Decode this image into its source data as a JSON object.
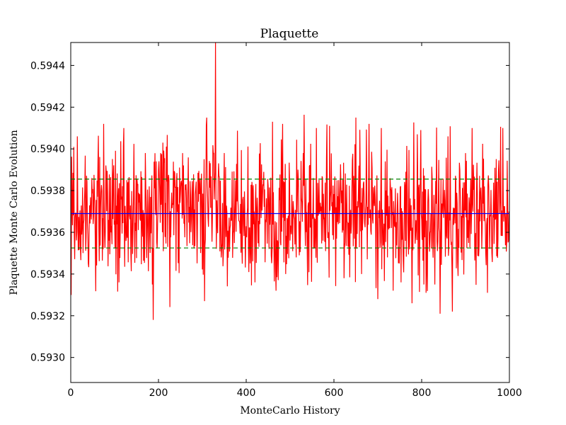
{
  "chart_data": {
    "type": "line",
    "title": "Plaquette",
    "xlabel": "MonteCarlo History",
    "ylabel": "Plaquette Monte Carlo Evolution",
    "xlim": [
      0,
      1000
    ],
    "ylim": [
      0.59288,
      0.59451
    ],
    "xticks": [
      "0",
      "200",
      "400",
      "600",
      "800",
      "1000"
    ],
    "yticks": [
      "0.5930",
      "0.5932",
      "0.5934",
      "0.5936",
      "0.5938",
      "0.5940",
      "0.5942",
      "0.5944"
    ],
    "grid": false,
    "legend": "none",
    "series": [
      {
        "kind": "history",
        "color": "#ff0000",
        "n_points": 1000,
        "mean": 0.59369,
        "stddev": 0.000165,
        "x": [
          0,
          1,
          15,
          28,
          75,
          110,
          121,
          170,
          186,
          188,
          205,
          210,
          255,
          305,
          310,
          330,
          350,
          390,
          420,
          440,
          460,
          468,
          483,
          490,
          530,
          560,
          575,
          590,
          623,
          650,
          700,
          708,
          735,
          753,
          778,
          790,
          798,
          805,
          810,
          830,
          842,
          860,
          870,
          900,
          915,
          950,
          985,
          999
        ],
        "y": [
          0.59368,
          0.5933,
          0.59406,
          0.5935,
          0.59412,
          0.59336,
          0.5941,
          0.59398,
          0.59335,
          0.59318,
          0.59398,
          0.59403,
          0.59398,
          0.59327,
          0.59415,
          0.59451,
          0.59398,
          0.59354,
          0.59336,
          0.59389,
          0.59413,
          0.59332,
          0.59412,
          0.5934,
          0.59398,
          0.5941,
          0.59356,
          0.59411,
          0.59338,
          0.59415,
          0.59328,
          0.5941,
          0.59332,
          0.59336,
          0.59326,
          0.59407,
          0.59409,
          0.59335,
          0.59331,
          0.59335,
          0.59321,
          0.59406,
          0.59322,
          0.59398,
          0.5941,
          0.59331,
          0.5941,
          0.5937
        ]
      },
      {
        "kind": "mean",
        "color": "#0000ff",
        "x": [
          0,
          1000
        ],
        "y": [
          0.59369,
          0.59369
        ]
      },
      {
        "kind": "upper-bound",
        "color": "#008000",
        "dashed": true,
        "x": [
          0,
          1000
        ],
        "y": [
          0.593855,
          0.593855
        ]
      },
      {
        "kind": "lower-bound",
        "color": "#008000",
        "dashed": true,
        "x": [
          0,
          1000
        ],
        "y": [
          0.593525,
          0.593525
        ]
      }
    ]
  }
}
